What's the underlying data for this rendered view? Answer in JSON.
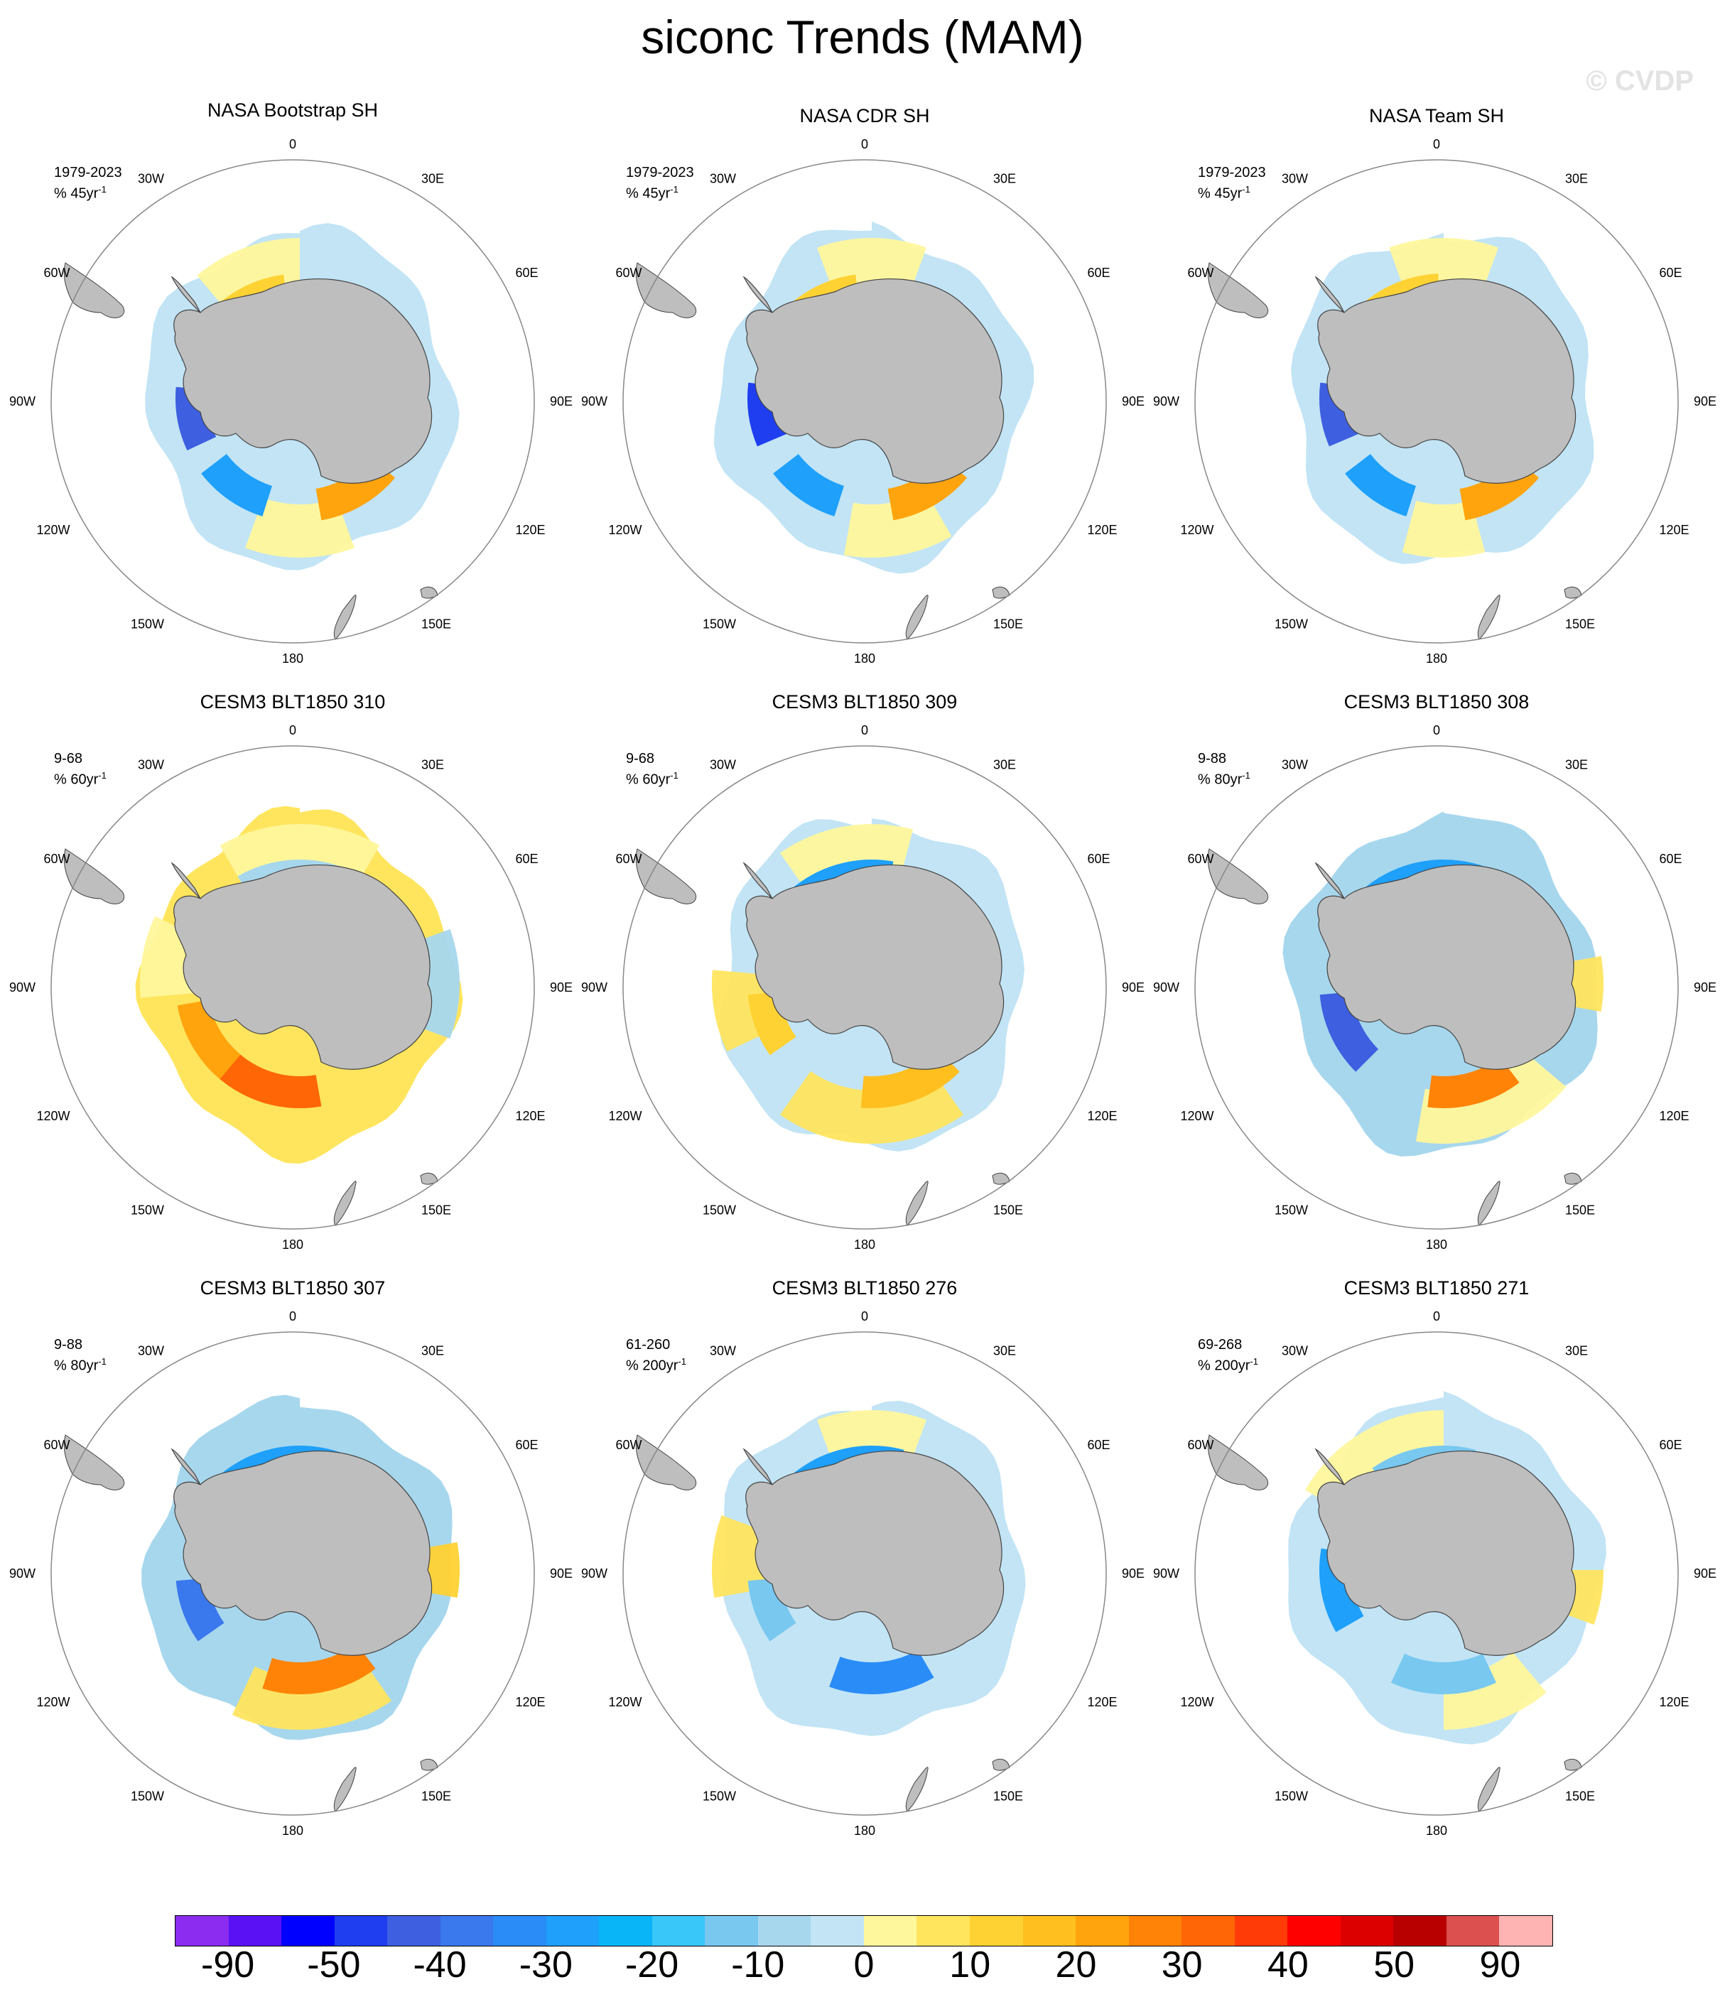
{
  "title": "siconc Trends (MAM)",
  "watermark": "© CVDP",
  "lon_labels": [
    "0",
    "30E",
    "60E",
    "90E",
    "120E",
    "150E",
    "180",
    "150W",
    "120W",
    "90W",
    "60W",
    "30W"
  ],
  "panels": [
    {
      "title": "NASA Bootstrap SH",
      "period": "1979-2023",
      "units": "% 45yr",
      "pattern": "obs"
    },
    {
      "title": "NASA CDR SH",
      "period": "1979-2023",
      "units": "% 45yr",
      "pattern": "obs2"
    },
    {
      "title": "NASA Team SH",
      "period": "1979-2023",
      "units": "% 45yr",
      "pattern": "obs3"
    },
    {
      "title": "CESM3 BLT1850 310",
      "period": "9-68",
      "units": "% 60yr",
      "pattern": "warm"
    },
    {
      "title": "CESM3 BLT1850 309",
      "period": "9-68",
      "units": "% 60yr",
      "pattern": "mixed"
    },
    {
      "title": "CESM3 BLT1850 308",
      "period": "9-88",
      "units": "% 80yr",
      "pattern": "cool"
    },
    {
      "title": "CESM3 BLT1850 307",
      "period": "9-88",
      "units": "% 80yr",
      "pattern": "cool2"
    },
    {
      "title": "CESM3 BLT1850 276",
      "period": "61-260",
      "units": "% 200yr",
      "pattern": "blue"
    },
    {
      "title": "CESM3 BLT1850 271",
      "period": "69-268",
      "units": "% 200yr",
      "pattern": "lightblue"
    }
  ],
  "colorbar": {
    "colors": [
      "#8b2cf0",
      "#5a12f5",
      "#0000ff",
      "#1f3ef0",
      "#3d5fe0",
      "#3a78ee",
      "#2a8cf7",
      "#1ea0fb",
      "#09b5f7",
      "#39c6f9",
      "#78c8f0",
      "#a7d7ed",
      "#c2e4f5",
      "#fff79c",
      "#ffe55e",
      "#ffd233",
      "#ffbf1f",
      "#ffa40d",
      "#ff8307",
      "#ff6606",
      "#ff3b08",
      "#ff0000",
      "#dc0000",
      "#b90000",
      "#dc5050",
      "#ffb4b4"
    ],
    "tick_labels": [
      "-90",
      "-50",
      "-40",
      "-30",
      "-20",
      "-10",
      "0",
      "10",
      "20",
      "30",
      "40",
      "50",
      "90"
    ]
  }
}
